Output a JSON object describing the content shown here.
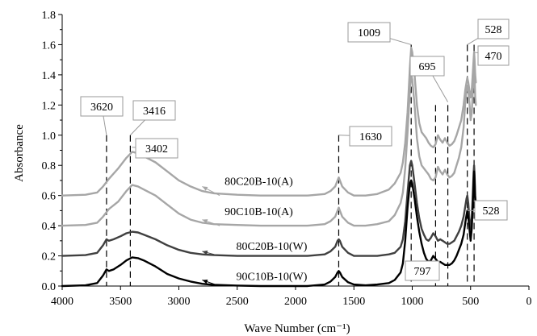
{
  "chart_data": {
    "type": "line",
    "title": "",
    "xlabel": "Wave Number (cm⁻¹)",
    "ylabel": "Absorbance",
    "xlim": [
      4000,
      0
    ],
    "ylim": [
      0,
      1.8
    ],
    "x_ticks": [
      "4000",
      "3500",
      "3000",
      "2500",
      "2000",
      "1500",
      "1000",
      "500",
      "0"
    ],
    "y_ticks": [
      "0.0",
      "0.2",
      "0.4",
      "0.6",
      "0.8",
      "1.0",
      "1.2",
      "1.4",
      "1.6",
      "1.8"
    ],
    "grid": false,
    "legend": "inline labels with arrows",
    "series": [
      {
        "name": "80C20B-10(A)",
        "color": "#a6a6a6",
        "x": [
          4000,
          3800,
          3700,
          3650,
          3600,
          3520,
          3450,
          3400,
          3350,
          3300,
          3200,
          3100,
          3000,
          2900,
          2800,
          2700,
          2500,
          2300,
          2100,
          1900,
          1750,
          1700,
          1660,
          1640,
          1630,
          1620,
          1600,
          1550,
          1500,
          1400,
          1300,
          1200,
          1150,
          1100,
          1080,
          1060,
          1040,
          1020,
          1009,
          1000,
          980,
          960,
          940,
          920,
          900,
          880,
          860,
          840,
          820,
          800,
          780,
          760,
          740,
          720,
          700,
          680,
          660,
          640,
          620,
          600,
          580,
          560,
          545,
          535,
          528,
          520,
          510,
          500,
          490,
          480,
          474,
          470,
          466,
          460,
          455
        ],
        "y": [
          0.6,
          0.605,
          0.62,
          0.66,
          0.71,
          0.78,
          0.85,
          0.89,
          0.88,
          0.86,
          0.82,
          0.76,
          0.7,
          0.66,
          0.63,
          0.615,
          0.605,
          0.6,
          0.6,
          0.6,
          0.61,
          0.63,
          0.66,
          0.7,
          0.72,
          0.7,
          0.66,
          0.62,
          0.6,
          0.6,
          0.61,
          0.64,
          0.68,
          0.75,
          0.82,
          0.95,
          1.15,
          1.45,
          1.58,
          1.55,
          1.4,
          1.2,
          1.08,
          1.02,
          1.0,
          0.98,
          0.95,
          0.93,
          0.92,
          0.94,
          1.0,
          0.97,
          0.95,
          0.98,
          0.95,
          0.93,
          0.94,
          0.96,
          1.0,
          1.05,
          1.1,
          1.2,
          1.3,
          1.35,
          1.38,
          1.35,
          1.3,
          1.25,
          1.3,
          1.42,
          1.5,
          1.55,
          1.5,
          1.4,
          1.35
        ]
      },
      {
        "name": "90C10B-10(A)",
        "color": "#a6a6a6",
        "x": [
          4000,
          3800,
          3700,
          3650,
          3600,
          3520,
          3450,
          3400,
          3350,
          3300,
          3200,
          3100,
          3000,
          2900,
          2800,
          2700,
          2500,
          2300,
          2100,
          1900,
          1750,
          1700,
          1660,
          1640,
          1630,
          1620,
          1600,
          1550,
          1500,
          1400,
          1300,
          1200,
          1150,
          1100,
          1080,
          1060,
          1040,
          1020,
          1009,
          1000,
          980,
          960,
          940,
          920,
          900,
          880,
          860,
          840,
          820,
          800,
          780,
          760,
          740,
          720,
          700,
          680,
          660,
          640,
          620,
          600,
          580,
          560,
          545,
          535,
          528,
          520,
          510,
          500,
          490,
          480,
          474,
          470,
          466,
          460,
          455
        ],
        "y": [
          0.4,
          0.405,
          0.42,
          0.46,
          0.51,
          0.56,
          0.63,
          0.67,
          0.66,
          0.64,
          0.6,
          0.54,
          0.48,
          0.44,
          0.42,
          0.41,
          0.405,
          0.4,
          0.4,
          0.4,
          0.41,
          0.43,
          0.46,
          0.5,
          0.52,
          0.5,
          0.46,
          0.42,
          0.4,
          0.4,
          0.41,
          0.43,
          0.47,
          0.55,
          0.62,
          0.78,
          1.02,
          1.3,
          1.4,
          1.37,
          1.2,
          0.98,
          0.86,
          0.8,
          0.78,
          0.76,
          0.74,
          0.71,
          0.7,
          0.72,
          0.79,
          0.76,
          0.74,
          0.77,
          0.74,
          0.72,
          0.73,
          0.75,
          0.8,
          0.85,
          0.92,
          1.05,
          1.22,
          1.3,
          1.33,
          1.3,
          1.22,
          1.1,
          1.15,
          1.3,
          1.4,
          1.45,
          1.4,
          1.25,
          1.2
        ]
      },
      {
        "name": "80C20B-10(W)",
        "color": "#404040",
        "x": [
          4000,
          3800,
          3700,
          3650,
          3620,
          3600,
          3560,
          3500,
          3450,
          3400,
          3350,
          3300,
          3200,
          3100,
          3000,
          2900,
          2800,
          2700,
          2500,
          2300,
          2100,
          1900,
          1750,
          1700,
          1660,
          1640,
          1630,
          1620,
          1600,
          1550,
          1500,
          1400,
          1300,
          1200,
          1150,
          1100,
          1080,
          1060,
          1040,
          1020,
          1009,
          1000,
          980,
          960,
          940,
          920,
          900,
          880,
          860,
          840,
          820,
          800,
          780,
          760,
          740,
          720,
          700,
          680,
          660,
          640,
          620,
          600,
          580,
          560,
          545,
          535,
          528,
          520,
          510,
          500,
          490,
          480,
          474,
          470,
          466,
          460,
          455
        ],
        "y": [
          0.2,
          0.205,
          0.22,
          0.27,
          0.31,
          0.3,
          0.31,
          0.33,
          0.35,
          0.36,
          0.355,
          0.34,
          0.31,
          0.27,
          0.24,
          0.22,
          0.21,
          0.205,
          0.2,
          0.2,
          0.2,
          0.2,
          0.21,
          0.23,
          0.26,
          0.3,
          0.31,
          0.3,
          0.26,
          0.22,
          0.2,
          0.2,
          0.2,
          0.21,
          0.22,
          0.26,
          0.31,
          0.43,
          0.62,
          0.8,
          0.83,
          0.8,
          0.68,
          0.55,
          0.45,
          0.38,
          0.34,
          0.31,
          0.3,
          0.32,
          0.35,
          0.33,
          0.3,
          0.31,
          0.3,
          0.29,
          0.28,
          0.28,
          0.29,
          0.3,
          0.33,
          0.36,
          0.4,
          0.46,
          0.53,
          0.58,
          0.6,
          0.55,
          0.45,
          0.38,
          0.45,
          0.62,
          0.75,
          0.8,
          0.74,
          0.6,
          0.55
        ]
      },
      {
        "name": "90C10B-10(W)",
        "color": "#000000",
        "x": [
          4000,
          3800,
          3700,
          3650,
          3620,
          3600,
          3560,
          3500,
          3450,
          3400,
          3350,
          3300,
          3200,
          3100,
          3000,
          2900,
          2800,
          2700,
          2500,
          2300,
          2100,
          1900,
          1750,
          1700,
          1660,
          1640,
          1630,
          1620,
          1600,
          1550,
          1500,
          1400,
          1300,
          1200,
          1150,
          1100,
          1080,
          1060,
          1040,
          1020,
          1009,
          1000,
          980,
          960,
          940,
          920,
          900,
          880,
          860,
          840,
          820,
          800,
          780,
          760,
          740,
          720,
          700,
          680,
          660,
          640,
          620,
          600,
          580,
          560,
          545,
          535,
          528,
          520,
          510,
          500,
          490,
          480,
          474,
          470,
          466,
          460,
          455
        ],
        "y": [
          0.0,
          0.005,
          0.02,
          0.07,
          0.11,
          0.1,
          0.11,
          0.14,
          0.17,
          0.19,
          0.185,
          0.17,
          0.13,
          0.08,
          0.05,
          0.03,
          0.015,
          0.008,
          0.003,
          0.0,
          0.0,
          0.0,
          0.01,
          0.03,
          0.06,
          0.09,
          0.1,
          0.09,
          0.06,
          0.025,
          0.01,
          0.005,
          0.01,
          0.02,
          0.04,
          0.09,
          0.15,
          0.3,
          0.52,
          0.68,
          0.7,
          0.68,
          0.58,
          0.46,
          0.36,
          0.28,
          0.22,
          0.18,
          0.16,
          0.17,
          0.2,
          0.18,
          0.16,
          0.16,
          0.15,
          0.14,
          0.14,
          0.14,
          0.15,
          0.17,
          0.2,
          0.24,
          0.28,
          0.34,
          0.42,
          0.47,
          0.5,
          0.46,
          0.38,
          0.3,
          0.38,
          0.55,
          0.7,
          0.76,
          0.7,
          0.55,
          0.5
        ]
      }
    ],
    "marker_lines": [
      {
        "x": 3620,
        "y_top": 1.0
      },
      {
        "x": 3416,
        "y_top": 1.0
      },
      {
        "x": 1630,
        "y_top": 1.0
      },
      {
        "x": 1009,
        "y_top": 1.6
      },
      {
        "x": 800,
        "y_top": 1.2
      },
      {
        "x": 695,
        "y_top": 1.2
      },
      {
        "x": 528,
        "y_top": 1.6
      },
      {
        "x": 470,
        "y_top": 1.6
      }
    ],
    "annotations": [
      {
        "text": "3620",
        "x": 3620,
        "y": 1.0
      },
      {
        "text": "3416",
        "x": 3416,
        "y": 1.0
      },
      {
        "text": "3402",
        "x": 3402,
        "y": 0.92
      },
      {
        "text": "1630",
        "x": 1630,
        "y": 1.0
      },
      {
        "text": "1009",
        "x": 1009,
        "y": 1.6
      },
      {
        "text": "695",
        "x": 695,
        "y": 1.25
      },
      {
        "text": "528",
        "x": 528,
        "y": 1.6
      },
      {
        "text": "470",
        "x": 470,
        "y": 1.55
      },
      {
        "text": "528",
        "x": 528,
        "y": 0.52
      },
      {
        "text": "797",
        "x": 797,
        "y": 0.15
      }
    ]
  }
}
